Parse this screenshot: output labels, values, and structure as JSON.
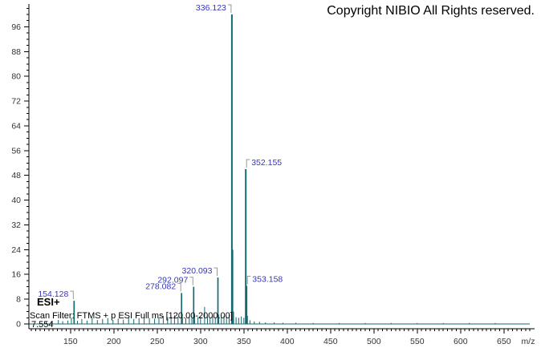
{
  "header": {
    "copyright": "Copyright NIBIO All Rights reserved."
  },
  "annotations": {
    "ionization_mode": "ESI+",
    "scan_filter": "Scan Filter: FTMS + p ESI Full ms [120.00-2000.00]",
    "retention_time": "7.554"
  },
  "colors": {
    "peak": "#136a70",
    "peak_label": "#3535bd",
    "connector": "#999999",
    "axis": "#000000",
    "tick_label": "#333333",
    "background": "#ffffff"
  },
  "chart_data": {
    "type": "bar",
    "subtype": "mass-spectrum",
    "title": "",
    "xlabel": "m/z",
    "ylabel": "",
    "xlim": [
      102,
      680
    ],
    "ylim": [
      0,
      103
    ],
    "grid": false,
    "x_major_ticks": [
      150,
      200,
      250,
      300,
      350,
      400,
      450,
      500,
      550,
      600,
      650
    ],
    "x_minor_tick_step": 5,
    "y_major_ticks": [
      0,
      8,
      16,
      24,
      32,
      40,
      48,
      56,
      64,
      72,
      80,
      88,
      96
    ],
    "y_minor_tick_step": 2,
    "labeled_peaks": [
      {
        "mz": 154.128,
        "intensity": 7.5,
        "label": "154.128",
        "label_side": "left"
      },
      {
        "mz": 278.082,
        "intensity": 10,
        "label": "278.082",
        "label_side": "left"
      },
      {
        "mz": 292.097,
        "intensity": 12,
        "label": "292.097",
        "label_side": "left"
      },
      {
        "mz": 320.093,
        "intensity": 15,
        "label": "320.093",
        "label_side": "left"
      },
      {
        "mz": 336.123,
        "intensity": 100,
        "label": "336.123",
        "label_side": "left"
      },
      {
        "mz": 352.155,
        "intensity": 50,
        "label": "352.155",
        "label_side": "right"
      },
      {
        "mz": 353.158,
        "intensity": 12.3,
        "label": "353.158",
        "label_side": "right"
      }
    ],
    "unlabeled_peaks": [
      [
        122,
        0.8
      ],
      [
        129,
        1.0
      ],
      [
        136,
        1.3
      ],
      [
        141,
        0.9
      ],
      [
        147,
        1.1
      ],
      [
        151,
        2.0
      ],
      [
        158,
        1.0
      ],
      [
        163,
        1.6
      ],
      [
        169,
        1.1
      ],
      [
        175,
        1.9
      ],
      [
        181,
        1.3
      ],
      [
        187,
        1.6
      ],
      [
        193,
        1.9
      ],
      [
        199,
        1.3
      ],
      [
        205,
        1.7
      ],
      [
        211,
        1.4
      ],
      [
        217,
        2.0
      ],
      [
        223,
        1.6
      ],
      [
        229,
        1.9
      ],
      [
        235,
        2.3
      ],
      [
        241,
        1.9
      ],
      [
        247,
        1.7
      ],
      [
        252,
        2.0
      ],
      [
        257,
        2.6
      ],
      [
        262,
        2.2
      ],
      [
        266,
        2.4
      ],
      [
        270,
        2.8
      ],
      [
        274,
        2.4
      ],
      [
        279.085,
        2.2
      ],
      [
        283,
        2.0
      ],
      [
        287,
        2.4
      ],
      [
        290,
        2.0
      ],
      [
        293.1,
        2.6
      ],
      [
        297,
        2.2
      ],
      [
        300,
        2.4
      ],
      [
        304.7,
        5.5
      ],
      [
        308,
        2.3
      ],
      [
        311,
        2.0
      ],
      [
        314,
        2.4
      ],
      [
        317,
        2.1
      ],
      [
        321.097,
        3.0
      ],
      [
        324,
        2.3
      ],
      [
        327,
        2.6
      ],
      [
        330,
        2.4
      ],
      [
        333,
        3.0
      ],
      [
        337.127,
        24
      ],
      [
        338.13,
        4.0
      ],
      [
        341,
        2.2
      ],
      [
        344,
        2.0
      ],
      [
        347,
        2.4
      ],
      [
        350,
        2.0
      ],
      [
        354.162,
        2.6
      ],
      [
        357,
        1.2
      ],
      [
        362,
        0.8
      ],
      [
        368,
        0.7
      ],
      [
        375,
        0.5
      ],
      [
        385,
        0.5
      ],
      [
        395,
        0.4
      ],
      [
        410,
        0.4
      ],
      [
        430,
        0.3
      ],
      [
        460,
        0.3
      ],
      [
        490,
        0.3
      ],
      [
        520,
        0.3
      ],
      [
        550,
        0.3
      ],
      [
        580,
        0.3
      ],
      [
        610,
        0.3
      ],
      [
        640,
        0.3
      ]
    ]
  }
}
